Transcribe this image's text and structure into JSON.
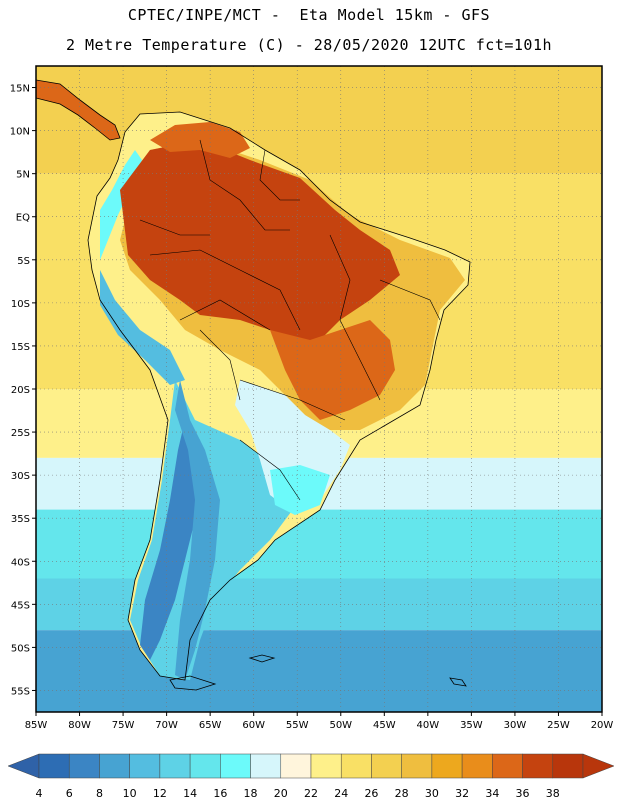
{
  "header": {
    "line1": "CPTEC/INPE/MCT -  Eta Model 15km - GFS",
    "line2": "2 Metre Temperature (C) - 28/05/2020 12UTC fct=101h"
  },
  "map": {
    "lat_labels": [
      "15N",
      "10N",
      "5N",
      "EQ",
      "5S",
      "10S",
      "15S",
      "20S",
      "25S",
      "30S",
      "35S",
      "40S",
      "45S",
      "50S",
      "55S"
    ],
    "lon_labels": [
      "85W",
      "80W",
      "75W",
      "70W",
      "65W",
      "60W",
      "55W",
      "50W",
      "45W",
      "40W",
      "35W",
      "30W",
      "25W",
      "20W"
    ],
    "lon_range": [
      -85,
      -20
    ],
    "lat_range": [
      -57.5,
      17.5
    ],
    "ocean_bands": [
      {
        "lat_from": 17.5,
        "lat_to": 5,
        "value": 27
      },
      {
        "lat_from": 5,
        "lat_to": -20,
        "value": 25
      },
      {
        "lat_from": -20,
        "lat_to": -28,
        "value": 23
      },
      {
        "lat_from": -28,
        "lat_to": -34,
        "value": 18
      },
      {
        "lat_from": -34,
        "lat_to": -42,
        "value": 15
      },
      {
        "lat_from": -42,
        "lat_to": -48,
        "value": 13
      },
      {
        "lat_from": -48,
        "lat_to": -57.5,
        "value": 8
      }
    ]
  },
  "colorbar": {
    "labels": [
      "4",
      "6",
      "8",
      "10",
      "12",
      "14",
      "16",
      "18",
      "20",
      "22",
      "24",
      "26",
      "28",
      "30",
      "32",
      "34",
      "36",
      "38"
    ],
    "colors": [
      "#2D6DB4",
      "#3B85C4",
      "#47A3D2",
      "#54BDE0",
      "#5ED2E6",
      "#64E6EC",
      "#6CFAFA",
      "#D6F6FB",
      "#FFF5DC",
      "#FEF08A",
      "#F9E065",
      "#F3D050",
      "#EFBE3F",
      "#EDA81E",
      "#E98D1B",
      "#DC6718",
      "#C5430F",
      "#B8360C"
    ],
    "under_color": "#2F62A8",
    "over_color": "#B8360C"
  }
}
